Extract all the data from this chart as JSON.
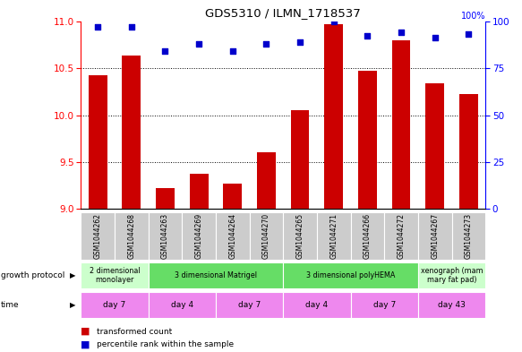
{
  "title": "GDS5310 / ILMN_1718537",
  "samples": [
    "GSM1044262",
    "GSM1044268",
    "GSM1044263",
    "GSM1044269",
    "GSM1044264",
    "GSM1044270",
    "GSM1044265",
    "GSM1044271",
    "GSM1044266",
    "GSM1044272",
    "GSM1044267",
    "GSM1044273"
  ],
  "bar_values": [
    10.42,
    10.63,
    9.22,
    9.38,
    9.27,
    9.6,
    10.05,
    10.97,
    10.47,
    10.8,
    10.34,
    10.22
  ],
  "dot_values": [
    97,
    97,
    84,
    88,
    84,
    88,
    89,
    100,
    92,
    94,
    91,
    93
  ],
  "bar_color": "#cc0000",
  "dot_color": "#0000cc",
  "ylim_left": [
    9,
    11
  ],
  "ylim_right": [
    0,
    100
  ],
  "yticks_left": [
    9,
    9.5,
    10,
    10.5,
    11
  ],
  "yticks_right": [
    0,
    25,
    50,
    75,
    100
  ],
  "grid_yticks": [
    9.5,
    10.0,
    10.5
  ],
  "gp_data": [
    {
      "label": "2 dimensional\nmonolayer",
      "start": 0,
      "end": 2,
      "color": "#ccffcc"
    },
    {
      "label": "3 dimensional Matrigel",
      "start": 2,
      "end": 6,
      "color": "#66dd66"
    },
    {
      "label": "3 dimensional polyHEMA",
      "start": 6,
      "end": 10,
      "color": "#66dd66"
    },
    {
      "label": "xenograph (mam\nmary fat pad)",
      "start": 10,
      "end": 12,
      "color": "#ccffcc"
    }
  ],
  "time_data": [
    {
      "label": "day 7",
      "start": 0,
      "end": 2
    },
    {
      "label": "day 4",
      "start": 2,
      "end": 4
    },
    {
      "label": "day 7",
      "start": 4,
      "end": 6
    },
    {
      "label": "day 4",
      "start": 6,
      "end": 8
    },
    {
      "label": "day 7",
      "start": 8,
      "end": 10
    },
    {
      "label": "day 43",
      "start": 10,
      "end": 12
    }
  ],
  "time_color": "#ee88ee",
  "sample_box_color": "#cccccc",
  "legend_bar_label": "transformed count",
  "legend_dot_label": "percentile rank within the sample",
  "growth_protocol_row_label": "growth protocol",
  "time_row_label": "time"
}
